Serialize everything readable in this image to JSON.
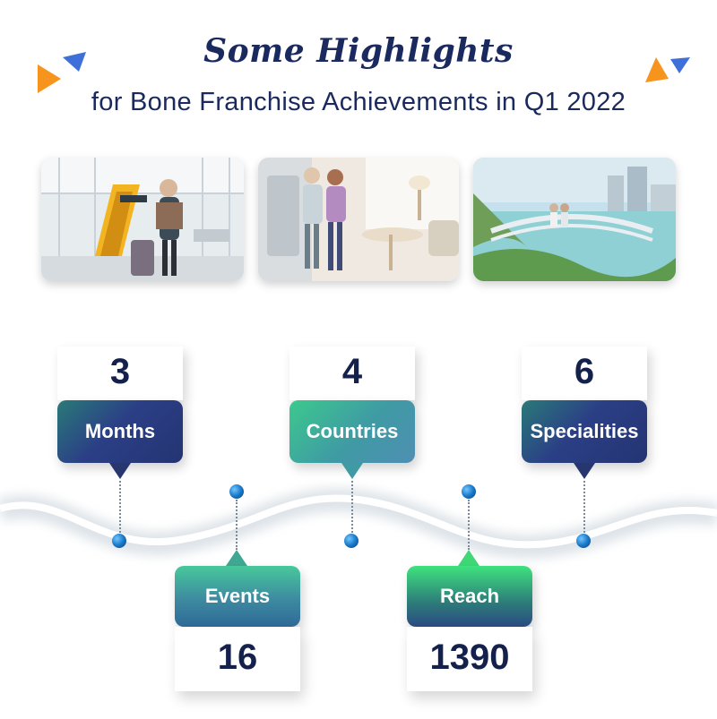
{
  "header": {
    "title": "Some Highlights",
    "subtitle": "for Bone Franchise Achievements in Q1 2022"
  },
  "photos": [
    {
      "icon": "airport-traveler-photo"
    },
    {
      "icon": "home-kitchen-photo"
    },
    {
      "icon": "city-bridge-photo"
    }
  ],
  "stats": {
    "months": {
      "value": "3",
      "label": "Months"
    },
    "countries": {
      "value": "4",
      "label": "Countries"
    },
    "specialities": {
      "value": "6",
      "label": "Specialities"
    },
    "events": {
      "value": "16",
      "label": "Events"
    },
    "reach": {
      "value": "1390",
      "label": "Reach"
    }
  },
  "colors": {
    "title": "#1b2a5e",
    "accent_orange": "#f7941d",
    "accent_blue": "#3f6fd8",
    "navy_box": "#243472",
    "green_box": "#3cc98e"
  }
}
